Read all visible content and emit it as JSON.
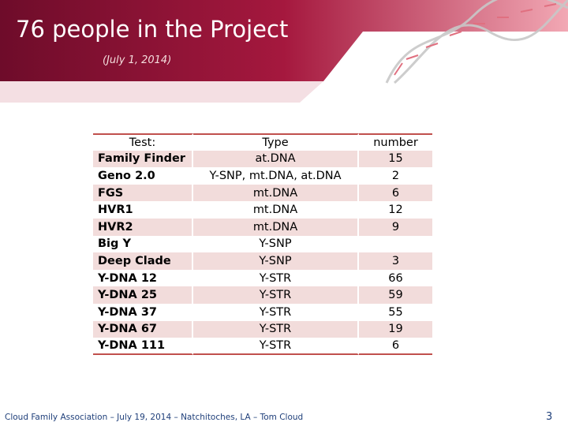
{
  "header": {
    "title": "76 people in the Project",
    "subtitle": "(July 1, 2014)"
  },
  "table": {
    "columns": [
      "Test:",
      "Type",
      "number"
    ],
    "rows": [
      [
        "Family Finder",
        "at.DNA",
        15
      ],
      [
        "Geno 2.0",
        "Y-SNP, mt.DNA, at.DNA",
        2
      ],
      [
        "FGS",
        "mt.DNA",
        6
      ],
      [
        "HVR1",
        "mt.DNA",
        12
      ],
      [
        "HVR2",
        "mt.DNA",
        9
      ],
      [
        "Big Y",
        "Y-SNP",
        null
      ],
      [
        "Deep Clade",
        "Y-SNP",
        3
      ],
      [
        "Y-DNA 12",
        "Y-STR",
        66
      ],
      [
        "Y-DNA 25",
        "Y-STR",
        59
      ],
      [
        "Y-DNA 37",
        "Y-STR",
        55
      ],
      [
        "Y-DNA 67",
        "Y-STR",
        19
      ],
      [
        "Y-DNA 111",
        "Y-STR",
        6
      ]
    ]
  },
  "footer": {
    "text": "Cloud Family Association – July 19, 2014 – Natchitoches, LA – Tom Cloud",
    "page": "3"
  }
}
